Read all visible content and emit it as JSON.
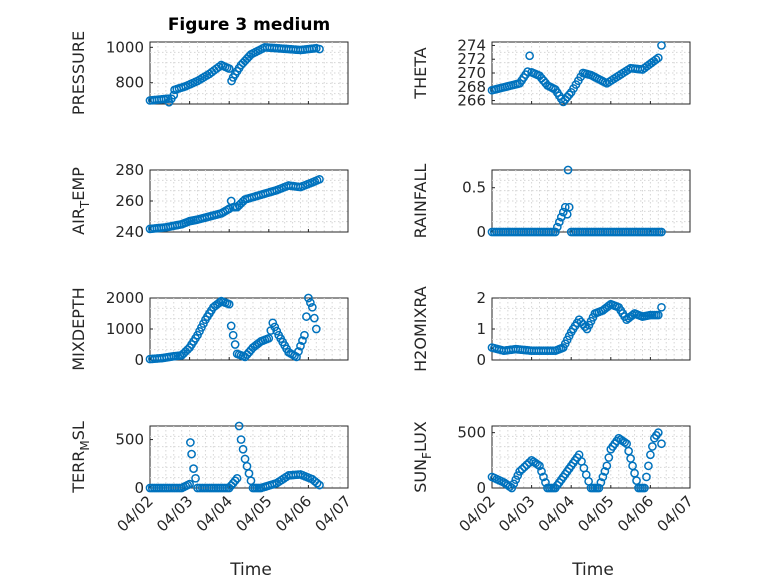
{
  "chart_data": [
    {
      "type": "scatter",
      "title": "Figure 3 medium",
      "ylabel_main": "PRESSURE",
      "ylabel_sub": "",
      "ylim": [
        680,
        1030
      ],
      "yticks": [
        800,
        1000
      ],
      "ytick_labels": [
        "800",
        "1000"
      ],
      "xlim": [
        0,
        5
      ],
      "xticks": [
        0,
        1,
        2,
        3,
        4,
        5
      ],
      "xtick_labels": [
        "04/02",
        "04/03",
        "04/04",
        "04/05",
        "04/06",
        "04/07"
      ],
      "show_xticklabels": false,
      "series": [
        {
          "x": [
            0.0,
            0.46,
            0.48,
            0.6,
            0.62,
            0.9,
            1.2,
            1.5,
            1.8,
            2.0,
            2.06,
            2.1,
            2.3,
            2.55,
            2.9,
            3.2,
            3.5,
            3.8,
            4.2,
            4.28
          ],
          "y": [
            700,
            710,
            690,
            730,
            760,
            780,
            810,
            850,
            900,
            880,
            810,
            830,
            900,
            960,
            1000,
            995,
            990,
            985,
            995,
            990
          ]
        }
      ]
    },
    {
      "type": "scatter",
      "title": "",
      "ylabel_main": "THETA",
      "ylabel_sub": "",
      "ylim": [
        265.5,
        274.5
      ],
      "yticks": [
        266,
        268,
        270,
        272,
        274
      ],
      "ytick_labels": [
        "266",
        "268",
        "270",
        "272",
        "274"
      ],
      "xlim": [
        0,
        5
      ],
      "xticks": [
        0,
        1,
        2,
        3,
        4,
        5
      ],
      "xtick_labels": [
        "04/02",
        "04/03",
        "04/04",
        "04/05",
        "04/06",
        "04/07"
      ],
      "show_xticklabels": false,
      "series": [
        {
          "x": [
            0.0,
            0.7,
            0.9,
            0.95,
            1.0,
            1.2,
            1.4,
            1.6,
            1.8,
            2.0,
            2.3,
            2.5,
            2.7,
            2.9,
            3.2,
            3.5,
            3.8,
            4.2,
            4.28
          ],
          "y": [
            267.5,
            268.5,
            270.2,
            272.5,
            270.1,
            269.6,
            268.2,
            267.6,
            265.8,
            267.2,
            270.0,
            269.7,
            269.1,
            268.5,
            269.6,
            270.7,
            270.5,
            272.2,
            274.0
          ]
        }
      ]
    },
    {
      "type": "scatter",
      "title": "",
      "ylabel_main": "AIR",
      "ylabel_sub": "T",
      "ylabel_tail": "EMP",
      "ylim": [
        240,
        280
      ],
      "yticks": [
        240,
        260,
        280
      ],
      "ytick_labels": [
        "240",
        "260",
        "280"
      ],
      "xlim": [
        0,
        5
      ],
      "xticks": [
        0,
        1,
        2,
        3,
        4,
        5
      ],
      "xtick_labels": [
        "04/02",
        "04/03",
        "04/04",
        "04/05",
        "04/06",
        "04/07"
      ],
      "show_xticklabels": false,
      "series": [
        {
          "x": [
            0.0,
            0.4,
            0.8,
            1.0,
            1.2,
            1.5,
            1.8,
            2.0,
            2.05,
            2.1,
            2.2,
            2.4,
            2.8,
            3.2,
            3.5,
            3.8,
            4.1,
            4.28
          ],
          "y": [
            242,
            243,
            245,
            247,
            248,
            250,
            252,
            255,
            260,
            256,
            256,
            261,
            264,
            267,
            270,
            269,
            272,
            274
          ]
        }
      ]
    },
    {
      "type": "scatter",
      "title": "",
      "ylabel_main": "RAINFALL",
      "ylabel_sub": "",
      "ylim": [
        0,
        0.7
      ],
      "yticks": [
        0,
        0.5
      ],
      "ytick_labels": [
        "0",
        "0.5"
      ],
      "xlim": [
        0,
        5
      ],
      "xticks": [
        0,
        1,
        2,
        3,
        4,
        5
      ],
      "xtick_labels": [
        "04/02",
        "04/03",
        "04/04",
        "04/05",
        "04/06",
        "04/07"
      ],
      "show_xticklabels": false,
      "series": [
        {
          "x": [
            0.0,
            0.4,
            0.8,
            1.2,
            1.6,
            1.85,
            1.9,
            1.92,
            1.95,
            2.0,
            2.4,
            2.8,
            3.2,
            3.6,
            4.0,
            4.28
          ],
          "y": [
            0,
            0,
            0,
            0,
            0,
            0.28,
            0.2,
            0.7,
            0.28,
            0,
            0,
            0,
            0,
            0,
            0,
            0
          ]
        }
      ]
    },
    {
      "type": "scatter",
      "title": "",
      "ylabel_main": "MIXDEPTH",
      "ylabel_sub": "",
      "ylim": [
        0,
        2000
      ],
      "yticks": [
        0,
        1000,
        2000
      ],
      "ytick_labels": [
        "0",
        "1000",
        "2000"
      ],
      "xlim": [
        0,
        5
      ],
      "xticks": [
        0,
        1,
        2,
        3,
        4,
        5
      ],
      "xtick_labels": [
        "04/02",
        "04/03",
        "04/04",
        "04/05",
        "04/06",
        "04/07"
      ],
      "show_xticklabels": false,
      "series": [
        {
          "x": [
            0.0,
            0.3,
            0.6,
            0.8,
            1.0,
            1.2,
            1.4,
            1.6,
            1.8,
            2.0,
            2.05,
            2.2,
            2.4,
            2.6,
            2.8,
            3.0,
            3.1,
            3.25,
            3.5,
            3.7,
            3.9,
            4.0,
            4.1,
            4.2
          ],
          "y": [
            30,
            60,
            120,
            150,
            400,
            800,
            1300,
            1700,
            1900,
            1800,
            1100,
            200,
            100,
            400,
            600,
            700,
            1200,
            800,
            250,
            100,
            800,
            2000,
            1700,
            1000
          ]
        }
      ]
    },
    {
      "type": "scatter",
      "title": "",
      "ylabel_main": "H2OMIXRA",
      "ylabel_sub": "",
      "ylim": [
        0,
        2
      ],
      "yticks": [
        0,
        1,
        2
      ],
      "ytick_labels": [
        "0",
        "1",
        "2"
      ],
      "xlim": [
        0,
        5
      ],
      "xticks": [
        0,
        1,
        2,
        3,
        4,
        5
      ],
      "xtick_labels": [
        "04/02",
        "04/03",
        "04/04",
        "04/05",
        "04/06",
        "04/07"
      ],
      "show_xticklabels": false,
      "series": [
        {
          "x": [
            0.0,
            0.3,
            0.6,
            1.0,
            1.3,
            1.6,
            1.8,
            2.0,
            2.2,
            2.4,
            2.6,
            2.8,
            3.0,
            3.2,
            3.4,
            3.6,
            3.8,
            4.0,
            4.2,
            4.28
          ],
          "y": [
            0.4,
            0.3,
            0.35,
            0.3,
            0.3,
            0.3,
            0.4,
            0.9,
            1.3,
            1.0,
            1.5,
            1.6,
            1.8,
            1.7,
            1.3,
            1.5,
            1.4,
            1.45,
            1.45,
            1.7
          ]
        }
      ]
    },
    {
      "type": "scatter",
      "title": "",
      "ylabel_main": "TERR",
      "ylabel_sub": "M",
      "ylabel_tail": "SL",
      "ylim": [
        0,
        640
      ],
      "yticks": [
        0,
        500
      ],
      "ytick_labels": [
        "0",
        "500"
      ],
      "xlim": [
        0,
        5
      ],
      "xticks": [
        0,
        1,
        2,
        3,
        4,
        5
      ],
      "xtick_labels": [
        "04/02",
        "04/03",
        "04/04",
        "04/05",
        "04/06",
        "04/07"
      ],
      "show_xticklabels": true,
      "series": [
        {
          "x": [
            0.0,
            0.5,
            0.8,
            1.0,
            1.02,
            1.05,
            1.1,
            1.15,
            1.2,
            1.5,
            2.0,
            2.2,
            2.25,
            2.3,
            2.4,
            2.5,
            2.6,
            2.8,
            3.2,
            3.5,
            3.8,
            4.1,
            4.28
          ],
          "y": [
            0,
            0,
            0,
            40,
            470,
            350,
            200,
            100,
            0,
            0,
            0,
            100,
            640,
            500,
            300,
            150,
            0,
            0,
            50,
            130,
            140,
            90,
            30
          ]
        }
      ]
    },
    {
      "type": "scatter",
      "title": "",
      "ylabel_main": "SUN",
      "ylabel_sub": "F",
      "ylabel_tail": "LUX",
      "ylim": [
        0,
        560
      ],
      "yticks": [
        0,
        500
      ],
      "ytick_labels": [
        "0",
        "500"
      ],
      "xlim": [
        0,
        5
      ],
      "xticks": [
        0,
        1,
        2,
        3,
        4,
        5
      ],
      "xtick_labels": [
        "04/02",
        "04/03",
        "04/04",
        "04/05",
        "04/06",
        "04/07"
      ],
      "show_xticklabels": true,
      "series": [
        {
          "x": [
            0.0,
            0.3,
            0.5,
            0.7,
            1.0,
            1.2,
            1.4,
            1.6,
            1.8,
            2.0,
            2.2,
            2.5,
            2.7,
            2.9,
            3.0,
            3.2,
            3.4,
            3.55,
            3.7,
            3.85,
            4.0,
            4.1,
            4.2,
            4.28
          ],
          "y": [
            100,
            50,
            0,
            150,
            250,
            200,
            0,
            0,
            100,
            200,
            300,
            0,
            0,
            200,
            350,
            450,
            400,
            200,
            0,
            0,
            300,
            450,
            500,
            400
          ]
        }
      ]
    }
  ],
  "xlabel": "Time"
}
